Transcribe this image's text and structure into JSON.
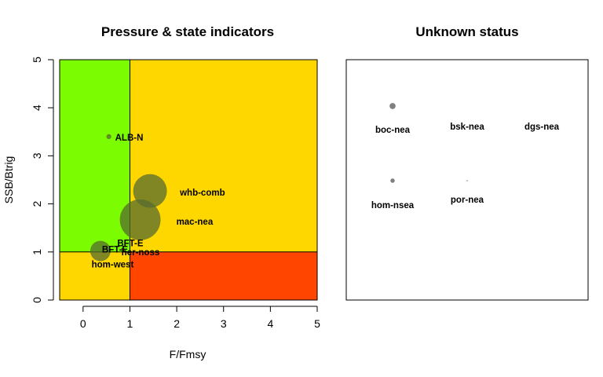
{
  "chart_data": [
    {
      "type": "scatter",
      "title": "Pressure & state indicators",
      "xlabel": "F/Fmsy",
      "ylabel": "SSB/Btrig",
      "xlim": [
        -0.5,
        5
      ],
      "ylim": [
        0,
        5
      ],
      "x_ticks": [
        "0",
        "1",
        "2",
        "3",
        "4",
        "5"
      ],
      "y_ticks": [
        "0",
        "1",
        "2",
        "3",
        "4",
        "5"
      ],
      "reference_lines": {
        "x": 1,
        "y": 1
      },
      "zones": [
        {
          "x0": -0.5,
          "x1": 1,
          "y0": 1,
          "y1": 5,
          "color": "#7CFC00"
        },
        {
          "x0": 1,
          "x1": 5,
          "y0": 1,
          "y1": 5,
          "color": "#FFD700"
        },
        {
          "x0": -0.5,
          "x1": 1,
          "y0": 0,
          "y1": 1,
          "color": "#FFD700"
        },
        {
          "x0": 1,
          "x1": 5,
          "y0": 0,
          "y1": 1,
          "color": "#FF4500"
        }
      ],
      "bubble_color": "#556B2F",
      "points": [
        {
          "label": "ALB-N",
          "x": 0.55,
          "y": 3.4,
          "size": 0.07
        },
        {
          "label": "whb-comb",
          "x": 1.43,
          "y": 2.27,
          "size": 0.48
        },
        {
          "label": "mac-nea",
          "x": 1.22,
          "y": 1.67,
          "size": 0.58
        },
        {
          "label": "BFT-E",
          "x": 0.37,
          "y": 1.02,
          "size": 0.29
        },
        {
          "label": "BFT-E",
          "x": 0.83,
          "y": 1.07,
          "size": 0.01
        },
        {
          "label": "her-noss",
          "x": 0.92,
          "y": 0.98,
          "size": 0.01
        },
        {
          "label": "hom-west",
          "x": 0.55,
          "y": 0.74,
          "size": 0.01
        }
      ]
    },
    {
      "type": "scatter",
      "title": "Unknown status",
      "points": [
        {
          "label": "boc-nea",
          "size": 0.07
        },
        {
          "label": "bsk-nea",
          "size": 0
        },
        {
          "label": "dgs-nea",
          "size": 0
        },
        {
          "label": "hom-nsea",
          "size": 0.05
        },
        {
          "label": "por-nea",
          "size": 0.01
        }
      ]
    }
  ]
}
